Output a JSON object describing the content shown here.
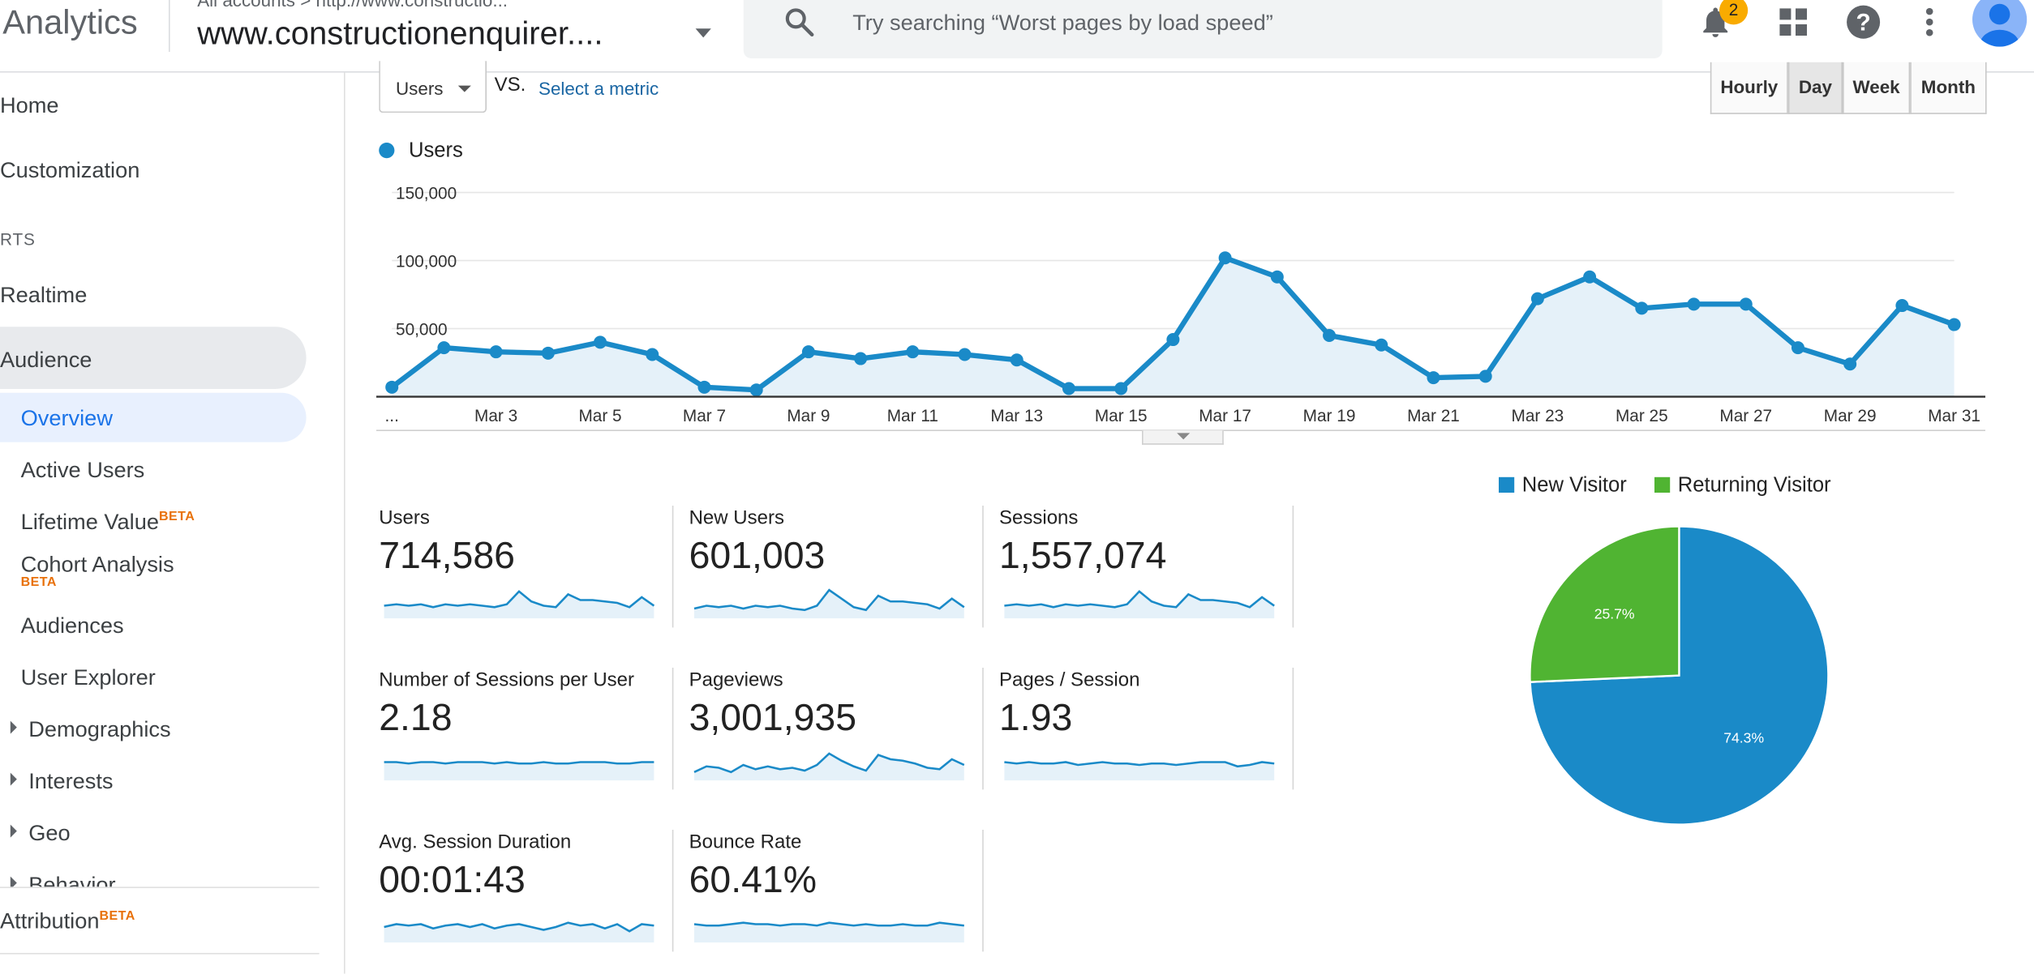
{
  "header": {
    "app_name": "Analytics",
    "breadcrumb": "All accounts > http://www.constructio...",
    "property_name": "www.constructionenquirer....",
    "search_placeholder": "Try searching “Worst pages by load speed”",
    "notification_count": "2"
  },
  "sidebar": {
    "home": "Home",
    "customization": "Customization",
    "reports_section": "RTS",
    "realtime": "Realtime",
    "audience": "Audience",
    "overview": "Overview",
    "active_users": "Active Users",
    "lifetime_value": "Lifetime Value",
    "cohort_analysis": "Cohort Analysis",
    "beta": "BETA",
    "audiences": "Audiences",
    "user_explorer": "User Explorer",
    "demographics": "Demographics",
    "interests": "Interests",
    "geo": "Geo",
    "behavior": "Behavior",
    "attribution": "Attribution"
  },
  "controls": {
    "metric_selected": "Users",
    "vs": "VS.",
    "select_metric": "Select a metric",
    "periods": [
      "Hourly",
      "Day",
      "Week",
      "Month"
    ],
    "active_period": "Day"
  },
  "chart_data": [
    {
      "type": "area",
      "legend": [
        "Users"
      ],
      "series_color": "#1a8ac8",
      "x": [
        "Mar 1",
        "Mar 2",
        "Mar 3",
        "Mar 4",
        "Mar 5",
        "Mar 6",
        "Mar 7",
        "Mar 8",
        "Mar 9",
        "Mar 10",
        "Mar 11",
        "Mar 12",
        "Mar 13",
        "Mar 14",
        "Mar 15",
        "Mar 16",
        "Mar 17",
        "Mar 18",
        "Mar 19",
        "Mar 20",
        "Mar 21",
        "Mar 22",
        "Mar 23",
        "Mar 24",
        "Mar 25",
        "Mar 26",
        "Mar 27",
        "Mar 28",
        "Mar 29",
        "Mar 30",
        "Mar 31"
      ],
      "x_tick_labels": [
        "...",
        "Mar 3",
        "Mar 5",
        "Mar 7",
        "Mar 9",
        "Mar 11",
        "Mar 13",
        "Mar 15",
        "Mar 17",
        "Mar 19",
        "Mar 21",
        "Mar 23",
        "Mar 25",
        "Mar 27",
        "Mar 29",
        "Mar 31"
      ],
      "series": [
        {
          "name": "Users",
          "values": [
            7000,
            36000,
            33000,
            32000,
            40000,
            31000,
            7000,
            5000,
            33000,
            28000,
            33000,
            31000,
            27000,
            6000,
            6000,
            42000,
            102000,
            88000,
            45000,
            38000,
            14000,
            15000,
            72000,
            88000,
            65000,
            68000,
            68000,
            36000,
            24000,
            67000,
            53000
          ]
        }
      ],
      "y_ticks": [
        "150,000",
        "100,000",
        "50,000"
      ],
      "ylim": [
        0,
        160000
      ],
      "grid": true
    },
    {
      "type": "pie",
      "categories": [
        "New Visitor",
        "Returning Visitor"
      ],
      "values": [
        74.3,
        25.7
      ],
      "value_labels": [
        "74.3%",
        "25.7%"
      ],
      "colors": [
        "#1a8ac8",
        "#50b432"
      ],
      "legend_position": "top"
    }
  ],
  "metrics": [
    {
      "label": "Users",
      "value": "714,586",
      "spark": [
        8,
        9,
        8,
        9,
        7,
        9,
        8,
        9,
        8,
        7,
        9,
        18,
        11,
        8,
        7,
        16,
        12,
        12,
        11,
        10,
        7,
        14,
        8
      ]
    },
    {
      "label": "New Users",
      "value": "601,003",
      "spark": [
        6,
        8,
        7,
        8,
        6,
        8,
        7,
        8,
        6,
        5,
        8,
        19,
        13,
        7,
        5,
        15,
        11,
        11,
        10,
        9,
        6,
        13,
        7
      ]
    },
    {
      "label": "Sessions",
      "value": "1,557,074",
      "spark": [
        8,
        9,
        8,
        9,
        7,
        9,
        8,
        9,
        8,
        7,
        9,
        18,
        11,
        8,
        7,
        16,
        12,
        12,
        11,
        10,
        7,
        14,
        8
      ]
    },
    {
      "label": "Number of Sessions per User",
      "value": "2.18",
      "spark": [
        12,
        12,
        11,
        12,
        12,
        11,
        12,
        12,
        12,
        11,
        12,
        11,
        11,
        12,
        11,
        11,
        12,
        12,
        12,
        11,
        11,
        12,
        12
      ]
    },
    {
      "label": "Pageviews",
      "value": "3,001,935",
      "spark": [
        5,
        9,
        8,
        5,
        10,
        7,
        9,
        7,
        8,
        6,
        10,
        18,
        13,
        9,
        6,
        17,
        14,
        13,
        11,
        8,
        7,
        14,
        10
      ]
    },
    {
      "label": "Pages / Session",
      "value": "1.93",
      "spark": [
        12,
        11,
        12,
        11,
        11,
        12,
        10,
        11,
        12,
        11,
        11,
        10,
        11,
        11,
        10,
        11,
        12,
        12,
        12,
        9,
        10,
        12,
        11
      ]
    },
    {
      "label": "Avg. Session Duration",
      "value": "00:01:43",
      "spark": [
        10,
        12,
        11,
        12,
        9,
        11,
        12,
        10,
        12,
        9,
        11,
        12,
        10,
        8,
        10,
        13,
        11,
        12,
        9,
        12,
        7,
        12,
        11
      ]
    },
    {
      "label": "Bounce Rate",
      "value": "60.41%",
      "spark": [
        12,
        11,
        11,
        12,
        13,
        12,
        12,
        11,
        12,
        12,
        11,
        13,
        12,
        11,
        12,
        11,
        11,
        12,
        11,
        11,
        13,
        12,
        11
      ]
    }
  ]
}
